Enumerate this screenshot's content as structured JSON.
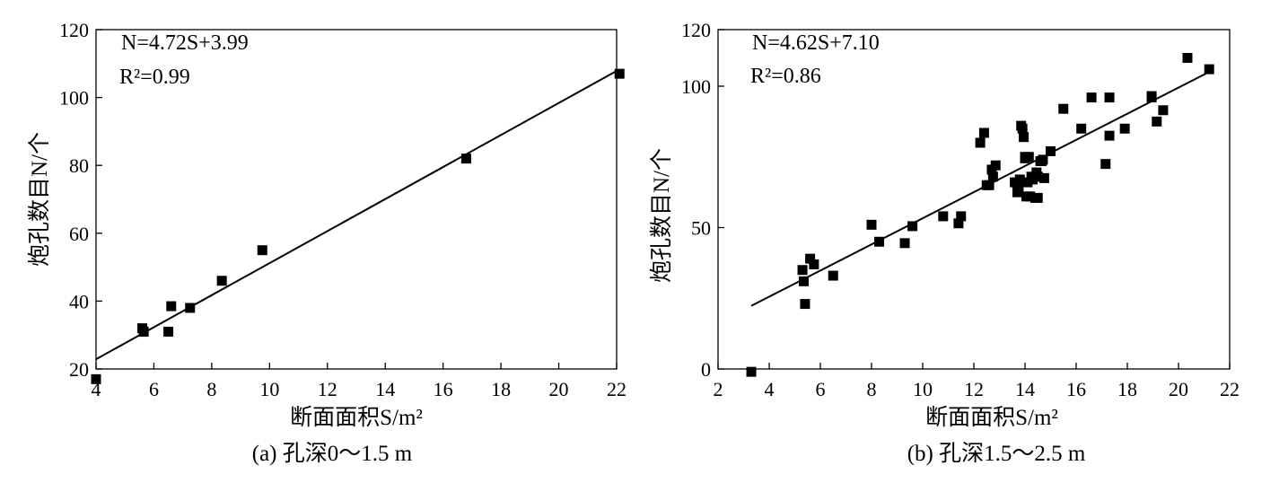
{
  "chart_data": [
    {
      "type": "scatter",
      "xlabel": "断面面积S/m²",
      "ylabel": "炮孔数目N/个",
      "caption": "(a)  孔深0～1.5 m",
      "equation": "N=4.72S+3.99",
      "r2": "R²=0.99",
      "fit": {
        "slope": 4.72,
        "intercept": 3.99
      },
      "xlim": [
        4,
        22
      ],
      "ylim": [
        20,
        120
      ],
      "xticks": [
        4,
        6,
        8,
        10,
        12,
        14,
        16,
        18,
        20,
        22
      ],
      "yticks": [
        20,
        40,
        60,
        80,
        100,
        120
      ],
      "x": [
        4.0,
        5.6,
        5.65,
        6.5,
        6.6,
        7.25,
        8.35,
        9.75,
        16.8,
        22.1
      ],
      "y": [
        17,
        32,
        31,
        31,
        38.5,
        38,
        46,
        55,
        82,
        107
      ]
    },
    {
      "type": "scatter",
      "xlabel": "断面面积S/m²",
      "ylabel": "炮孔数目N/个",
      "caption": "(b)  孔深1.5～2.5 m",
      "equation": "N=4.62S+7.10",
      "r2": "R²=0.86",
      "fit": {
        "slope": 4.62,
        "intercept": 7.1
      },
      "xlim": [
        2,
        22
      ],
      "ylim": [
        0,
        120
      ],
      "xticks": [
        2,
        4,
        6,
        8,
        10,
        12,
        14,
        16,
        18,
        20,
        22
      ],
      "yticks": [
        0,
        50,
        100,
        120
      ],
      "x": [
        3.3,
        5.3,
        5.35,
        5.4,
        5.6,
        5.75,
        6.5,
        8.0,
        8.3,
        9.3,
        9.6,
        10.8,
        11.4,
        11.5,
        12.25,
        12.4,
        12.5,
        12.6,
        12.7,
        12.75,
        12.85,
        13.6,
        13.7,
        13.75,
        13.8,
        13.85,
        13.9,
        13.95,
        14.0,
        14.0,
        14.05,
        14.1,
        14.15,
        14.2,
        14.25,
        14.3,
        14.4,
        14.45,
        14.5,
        14.5,
        14.6,
        14.65,
        14.7,
        14.75,
        15.0,
        15.5,
        16.2,
        16.6,
        17.15,
        17.3,
        17.3,
        17.9,
        18.95,
        18.95,
        19.15,
        19.4,
        20.35,
        21.2
      ],
      "y": [
        -1,
        35,
        31,
        23,
        39,
        37,
        33,
        51,
        45,
        44.5,
        50.5,
        54,
        51.5,
        54,
        80,
        83.5,
        65,
        65,
        70.5,
        68,
        72,
        66,
        62.5,
        64,
        67,
        86,
        85,
        82,
        75,
        74.5,
        61,
        66,
        75,
        61,
        68,
        67,
        60.5,
        69.5,
        68,
        60.5,
        73.5,
        73.5,
        74,
        67.5,
        77,
        92,
        85,
        96,
        72.5,
        82.5,
        96,
        85,
        96,
        96.5,
        87.5,
        91.5,
        110,
        106
      ]
    }
  ]
}
